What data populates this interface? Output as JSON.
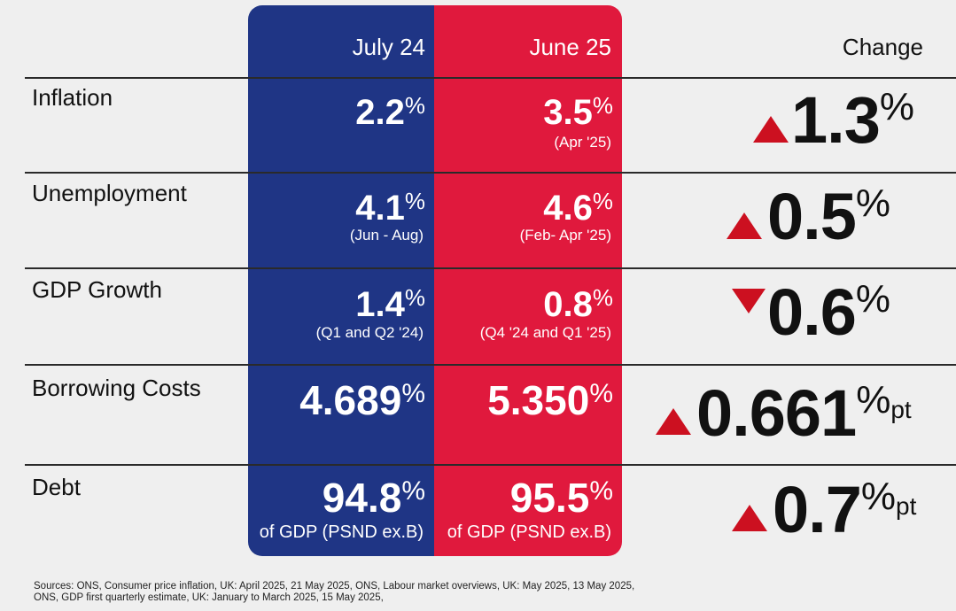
{
  "colors": {
    "blue": "#1f3585",
    "red": "#e0193d",
    "arrow": "#cc1020",
    "background": "#efefef"
  },
  "headers": {
    "col1": "July 24",
    "col2": "June 25",
    "change": "Change"
  },
  "rows": [
    {
      "label": "Inflation",
      "july": {
        "value": "2.2",
        "pct": "%",
        "note": ""
      },
      "june": {
        "value": "3.5",
        "pct": "%",
        "note": "(Apr '25)"
      },
      "change": {
        "direction": "up",
        "icon": "up-triangle-icon",
        "value": "1.3",
        "pct": "%",
        "unit": ""
      }
    },
    {
      "label": "Unemployment",
      "july": {
        "value": "4.1",
        "pct": "%",
        "note": "(Jun - Aug)"
      },
      "june": {
        "value": "4.6",
        "pct": "%",
        "note": "(Feb- Apr '25)"
      },
      "change": {
        "direction": "up",
        "icon": "up-triangle-icon",
        "value": "0.5",
        "pct": "%",
        "unit": ""
      }
    },
    {
      "label": "GDP Growth",
      "july": {
        "value": "1.4",
        "pct": "%",
        "note": "(Q1 and Q2 '24)"
      },
      "june": {
        "value": "0.8",
        "pct": "%",
        "note": "(Q4 '24 and Q1 '25)"
      },
      "change": {
        "direction": "down",
        "icon": "down-triangle-icon",
        "value": "0.6",
        "pct": "%",
        "unit": ""
      }
    },
    {
      "label": "Borrowing Costs",
      "july": {
        "value": "4.689",
        "pct": "%",
        "note": ""
      },
      "june": {
        "value": "5.350",
        "pct": "%",
        "note": ""
      },
      "change": {
        "direction": "up",
        "icon": "up-triangle-icon",
        "value": "0.661",
        "pct": "%",
        "unit": "pt"
      }
    },
    {
      "label": "Debt",
      "july": {
        "value": "94.8",
        "pct": "%",
        "note": "of GDP (PSND ex.B)"
      },
      "june": {
        "value": "95.5",
        "pct": "%",
        "note": "of GDP (PSND ex.B)"
      },
      "change": {
        "direction": "up",
        "icon": "up-triangle-icon",
        "value": "0.7",
        "pct": "%",
        "unit": "pt"
      }
    }
  ],
  "sources": {
    "line1": "Sources: ONS, Consumer price inflation, UK: April 2025, 21 May 2025, ONS, Labour market overviews, UK: May 2025, 13 May 2025,",
    "line2": "ONS, GDP first quarterly estimate, UK: January to March 2025, 15 May 2025,"
  }
}
